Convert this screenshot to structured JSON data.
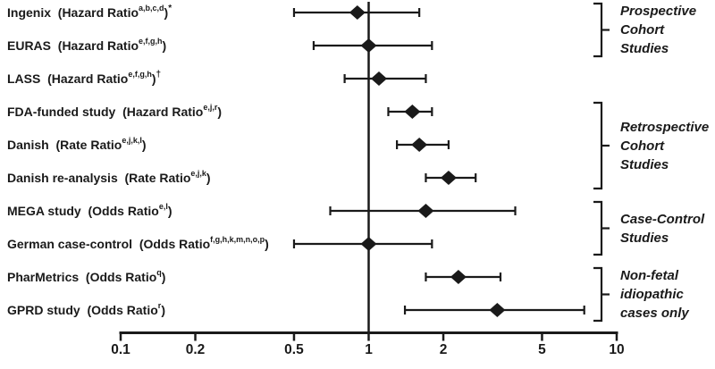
{
  "figure": {
    "background": "#ffffff",
    "ink_color": "#1a1a1a"
  },
  "chart_data": {
    "type": "forest-plot",
    "x_axis": {
      "scale": "log10",
      "range": [
        0.1,
        10
      ],
      "ticks": [
        0.1,
        0.2,
        0.5,
        1,
        2,
        5,
        10
      ],
      "tick_labels": [
        "0.1",
        "0.2",
        "0.5",
        "1",
        "2",
        "5",
        "10"
      ],
      "reference_line": 1,
      "grid": false
    },
    "rows": [
      {
        "study": "Ingenix",
        "measure": "Hazard Ratio",
        "label_pre": "Ingenix  (Hazard Ratio",
        "sup": "a,b,c,d",
        "label_post": ")",
        "sup_post": "*",
        "estimate": 0.9,
        "ci_low": 0.5,
        "ci_high": 1.6
      },
      {
        "study": "EURAS",
        "measure": "Hazard Ratio",
        "label_pre": "EURAS  (Hazard Ratio",
        "sup": "e,f,g,h",
        "label_post": ")",
        "sup_post": "",
        "estimate": 1.0,
        "ci_low": 0.6,
        "ci_high": 1.8
      },
      {
        "study": "LASS",
        "measure": "Hazard Ratio",
        "label_pre": "LASS  (Hazard Ratio",
        "sup": "e,f,g,h",
        "label_post": ")",
        "sup_post": "†",
        "estimate": 1.1,
        "ci_low": 0.8,
        "ci_high": 1.7
      },
      {
        "study": "FDA-funded study",
        "measure": "Hazard Ratio",
        "label_pre": "FDA-funded study  (Hazard Ratio",
        "sup": "e,j,r",
        "label_post": ")",
        "sup_post": "",
        "estimate": 1.5,
        "ci_low": 1.2,
        "ci_high": 1.8
      },
      {
        "study": "Danish",
        "measure": "Rate Ratio",
        "label_pre": "Danish  (Rate Ratio",
        "sup": "e,j,k,l",
        "label_post": ")",
        "sup_post": "",
        "estimate": 1.6,
        "ci_low": 1.3,
        "ci_high": 2.1
      },
      {
        "study": "Danish re-analysis",
        "measure": "Rate Ratio",
        "label_pre": "Danish re-analysis  (Rate Ratio",
        "sup": "e,j,k",
        "label_post": ")",
        "sup_post": "",
        "estimate": 2.1,
        "ci_low": 1.7,
        "ci_high": 2.7
      },
      {
        "study": "MEGA study",
        "measure": "Odds Ratio",
        "label_pre": "MEGA study  (Odds Ratio",
        "sup": "e,l",
        "label_post": ")",
        "sup_post": "",
        "estimate": 1.7,
        "ci_low": 0.7,
        "ci_high": 3.9
      },
      {
        "study": "German case-control",
        "measure": "Odds Ratio",
        "label_pre": "German case-control  (Odds Ratio",
        "sup": "f,g,h,k,m,n,o,p",
        "label_post": ")",
        "sup_post": "",
        "estimate": 1.0,
        "ci_low": 0.5,
        "ci_high": 1.8
      },
      {
        "study": "PharMetrics",
        "measure": "Odds Ratio",
        "label_pre": "PharMetrics  (Odds Ratio",
        "sup": "q",
        "label_post": ")",
        "sup_post": "",
        "estimate": 2.3,
        "ci_low": 1.7,
        "ci_high": 3.4
      },
      {
        "study": "GPRD study",
        "measure": "Odds Ratio",
        "label_pre": "GPRD study  (Odds Ratio",
        "sup": "r",
        "label_post": ")",
        "sup_post": "",
        "estimate": 3.3,
        "ci_low": 1.4,
        "ci_high": 7.4
      }
    ],
    "groups": [
      {
        "label": "Prospective Cohort Studies",
        "lines": [
          "Prospective",
          "Cohort",
          "Studies"
        ],
        "row_start": 0,
        "row_end": 1
      },
      {
        "label": "Retrospective Cohort Studies",
        "lines": [
          "Retrospective",
          "Cohort",
          "Studies"
        ],
        "row_start": 3,
        "row_end": 5
      },
      {
        "label": "Case-Control Studies",
        "lines": [
          "Case-Control",
          "Studies"
        ],
        "row_start": 6,
        "row_end": 7
      },
      {
        "label": "Non-fetal idiopathic cases only",
        "lines": [
          "Non-fetal",
          "idiopathic",
          "cases only"
        ],
        "row_start": 8,
        "row_end": 9
      }
    ]
  }
}
